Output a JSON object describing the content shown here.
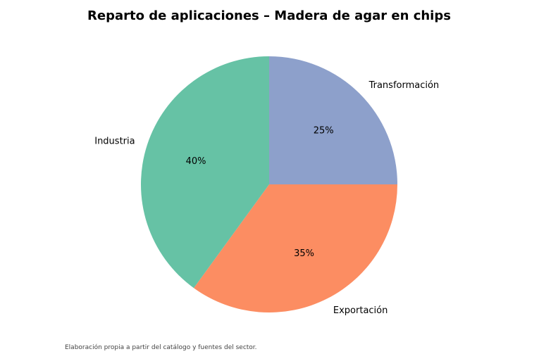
{
  "chart_data": {
    "type": "pie",
    "title": "Reparto de aplicaciones – Madera de agar en chips",
    "categories": [
      "Transformación",
      "Exportación",
      "Industria"
    ],
    "values": [
      25,
      35,
      40
    ],
    "value_labels": [
      "25%",
      "35%",
      "40%"
    ],
    "colors": [
      "#8da0cb",
      "#fc8d62",
      "#66c2a5"
    ],
    "start_angle_deg": 90,
    "direction": "clockwise",
    "legend": "none"
  },
  "caption": "Elaboración propia a partir del catálogo y fuentes del sector."
}
